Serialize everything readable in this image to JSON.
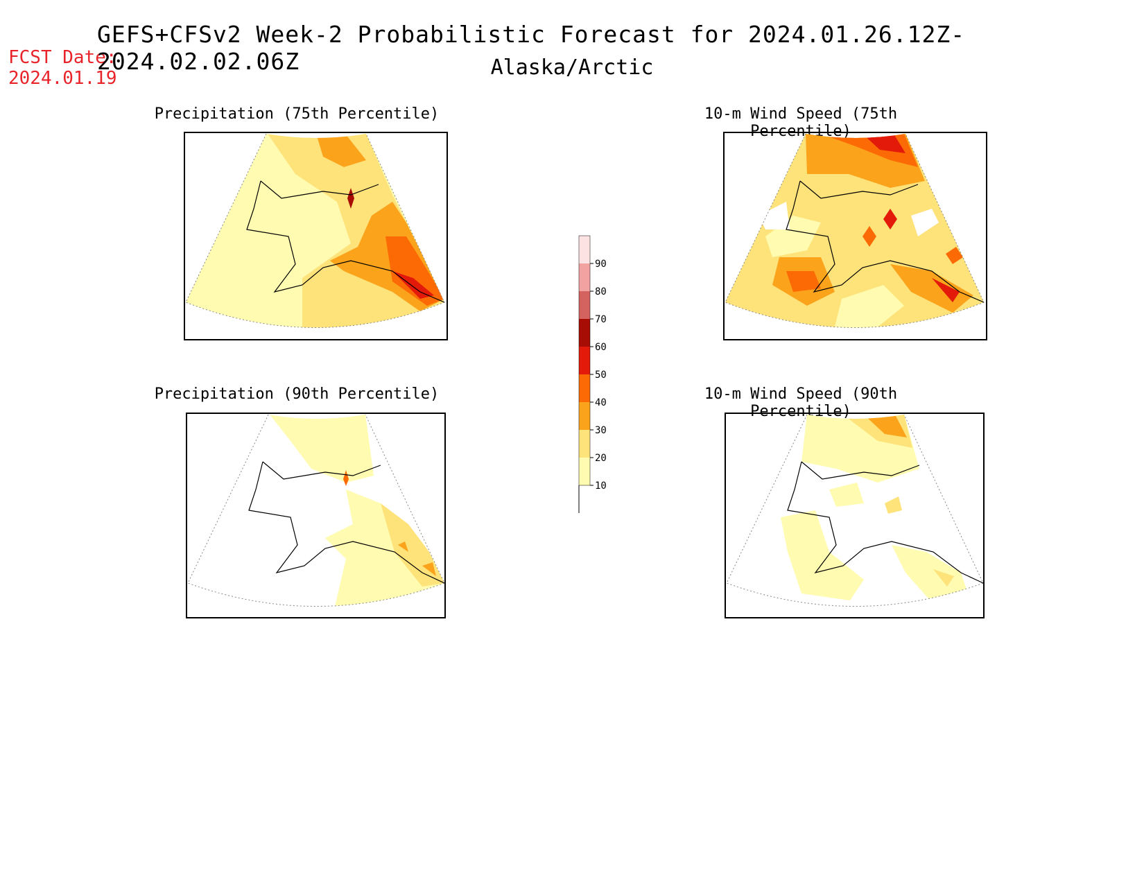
{
  "header": {
    "title": "GEFS+CFSv2 Week-2 Probabilistic Forecast for 2024.01.26.12Z-2024.02.02.06Z",
    "region": "Alaska/Arctic",
    "fcst_label": "FCST Date:",
    "fcst_date": "2024.01.19"
  },
  "panels": [
    {
      "title": "Precipitation (75th Percentile)"
    },
    {
      "title": "10-m Wind Speed (75th Percentile)"
    },
    {
      "title": "Precipitation (90th Percentile)"
    },
    {
      "title": "10-m Wind Speed (90th Percentile)"
    }
  ],
  "legend": {
    "levels": [
      "10",
      "20",
      "30",
      "40",
      "50",
      "60",
      "70",
      "80",
      "90"
    ],
    "colors": [
      "#fffbb0",
      "#fee27a",
      "#fca31c",
      "#fc6a05",
      "#e31a0a",
      "#a80d05",
      "#d4625f",
      "#f3a2a2",
      "#fde2e4"
    ]
  }
}
